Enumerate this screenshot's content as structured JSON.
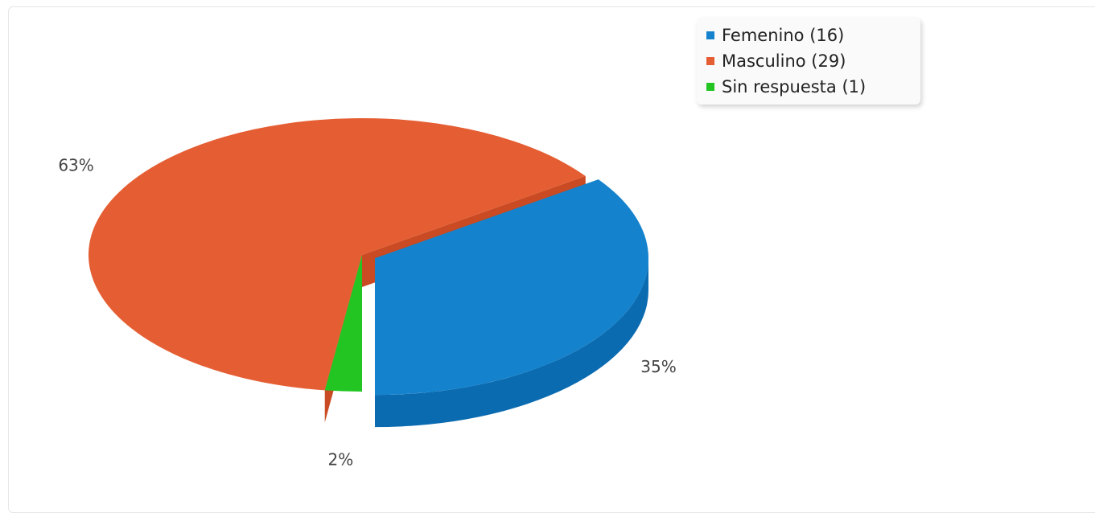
{
  "chart_data": {
    "type": "pie",
    "style": "3d",
    "categories": [
      "Femenino",
      "Masculino",
      "Sin respuesta"
    ],
    "values": [
      16,
      29,
      1
    ],
    "percent_labels": [
      "35%",
      "63%",
      "2%"
    ],
    "colors": [
      "#1482cc",
      "#e55e33",
      "#22c522"
    ],
    "side_colors": [
      "#0b6bb0",
      "#c94a23",
      "#15a015"
    ],
    "legend_position": "top-right",
    "title": "",
    "legend": [
      {
        "label": "Femenino (16)",
        "color": "#1482cc"
      },
      {
        "label": "Masculino (29)",
        "color": "#e55e33"
      },
      {
        "label": "Sin respuesta (1)",
        "color": "#22c522"
      }
    ]
  }
}
